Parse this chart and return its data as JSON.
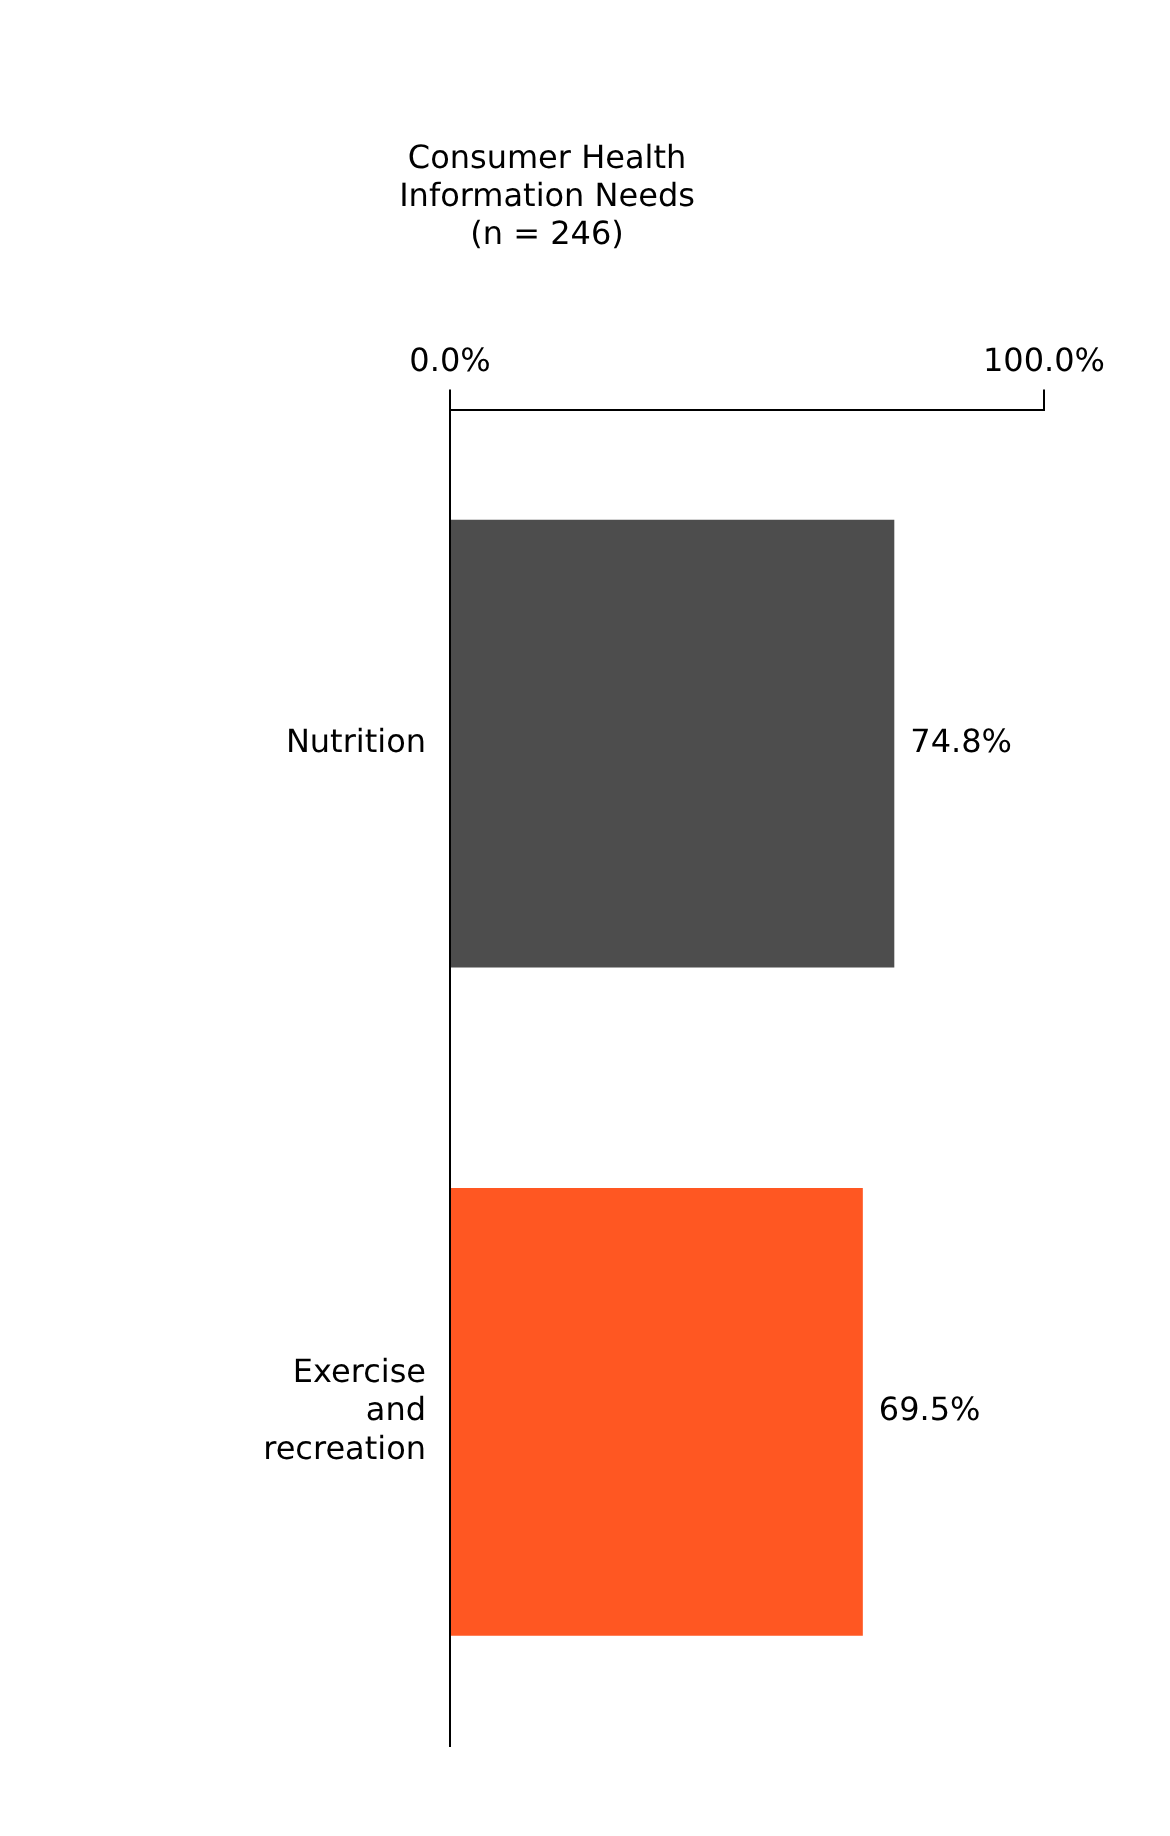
{
  "chart_data": {
    "type": "bar",
    "orientation": "horizontal",
    "title": "Consumer Health Information Needs",
    "subtitle": "(n = 246)",
    "categories": [
      "Nutrition",
      "Exercise and recreation"
    ],
    "values": [
      74.8,
      69.5
    ],
    "colors": [
      "#4d4d4d",
      "#ff5722"
    ],
    "value_labels": [
      "74.8%",
      "69.5%"
    ],
    "xlim": [
      0,
      100
    ],
    "xticks": [
      {
        "value": 0,
        "label": "0.0%"
      },
      {
        "value": 100,
        "label": "100.0%"
      }
    ],
    "grid": false,
    "legend": false
  }
}
